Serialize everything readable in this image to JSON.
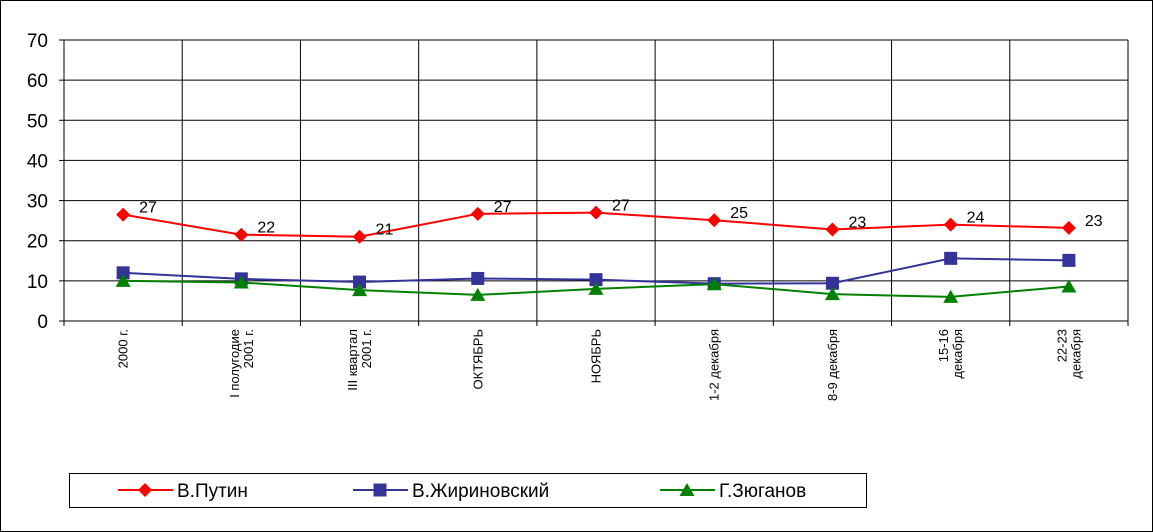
{
  "chart_data": {
    "type": "line",
    "categories": [
      [
        "2000 г."
      ],
      [
        "I полугодие",
        "2001 г."
      ],
      [
        "III квартал",
        "2001 г."
      ],
      [
        "ОКТЯБРЬ"
      ],
      [
        "НОЯБРЬ"
      ],
      [
        "1-2 декабря"
      ],
      [
        "8-9 декабря"
      ],
      [
        "15-16",
        "декабря"
      ],
      [
        "22-23",
        "декабря"
      ]
    ],
    "ylim": [
      0,
      70
    ],
    "yticks": [
      0,
      10,
      20,
      30,
      40,
      50,
      60,
      70
    ],
    "grid": true,
    "legend_position": "bottom-center",
    "series": [
      {
        "name": "В.Путин",
        "color": "#ff0000",
        "marker": "diamond",
        "values": [
          26.5,
          21.5,
          21,
          26.7,
          27,
          25.1,
          22.8,
          24,
          23.2
        ],
        "labels": [
          "27",
          "22",
          "21",
          "27",
          "27",
          "25",
          "23",
          "24",
          "23"
        ]
      },
      {
        "name": "В.Жириновский",
        "color": "#333399",
        "marker": "square",
        "values": [
          12,
          10.5,
          9.7,
          10.6,
          10.3,
          9.3,
          9.4,
          15.6,
          15.1
        ]
      },
      {
        "name": "Г.Зюганов",
        "color": "#008000",
        "marker": "triangle",
        "values": [
          10,
          9.6,
          7.7,
          6.5,
          8,
          9.2,
          6.7,
          6,
          8.6
        ]
      }
    ]
  }
}
